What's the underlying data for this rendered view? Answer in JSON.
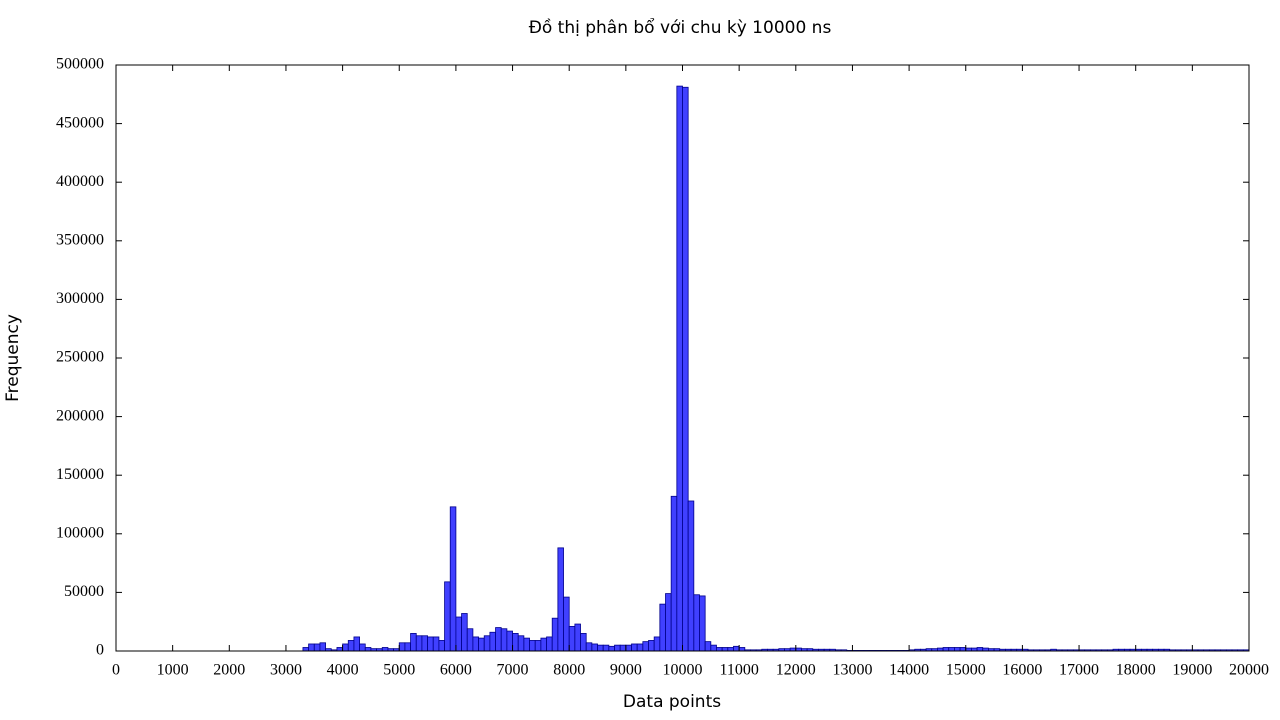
{
  "chart_data": {
    "type": "histogram",
    "title": "Đồ thị phân bổ với chu kỳ 10000 ns",
    "x_label": "Data points",
    "y_label": "Frequency",
    "color": "#4040ff",
    "bins": [
      3300,
      3400,
      3500,
      3600,
      3700,
      3800,
      3900,
      4000,
      4100,
      4200,
      4300,
      4400,
      4500,
      4600,
      4700,
      4800,
      4900,
      5000,
      5100,
      5200,
      5300,
      5400,
      5500,
      5600,
      5700,
      5800,
      5900,
      6000,
      6100,
      6200,
      6300,
      6400,
      6500,
      6600,
      6700,
      6800,
      6900,
      7000,
      7100,
      7200,
      7300,
      7400,
      7500,
      7600,
      7700,
      7800,
      7900,
      8000,
      8100,
      8200,
      8300,
      8400,
      8500,
      8600,
      8700,
      8800,
      8900,
      9000,
      9100,
      9200,
      9300,
      9400,
      9500,
      9600,
      9700,
      9800,
      9900,
      10000,
      10100,
      10200,
      10300,
      10400,
      10500,
      10600,
      10700,
      10800,
      10900,
      11000,
      11100,
      11200,
      11300,
      11400,
      11500,
      11600,
      11700,
      11800,
      11900,
      12000,
      12100,
      12200,
      12300,
      12400,
      12500,
      12600,
      12700,
      12800,
      12900,
      13000,
      13100,
      13200,
      13300,
      13400,
      13500,
      13600,
      13700,
      13800,
      13900,
      14000,
      14100,
      14200,
      14300,
      14400,
      14500,
      14600,
      14700,
      14800,
      14900,
      15000,
      15100,
      15200,
      15300,
      15400,
      15500,
      15600,
      15700,
      15800,
      15900,
      16000,
      16100,
      16200,
      16300,
      16400,
      16500,
      16600,
      16700,
      16800,
      16900,
      17000,
      17100,
      17200,
      17300,
      17400,
      17500,
      17600,
      17700,
      17800,
      17900,
      18000,
      18100,
      18200,
      18300,
      18400,
      18500,
      18600,
      18700,
      18800,
      18900,
      19000,
      19100,
      19200,
      19300,
      19400,
      19500,
      19600,
      19700,
      19800,
      19900,
      20000
    ],
    "counts": [
      3000,
      6000,
      6000,
      7000,
      2000,
      1000,
      3000,
      6000,
      9000,
      12000,
      6000,
      3000,
      2000,
      2000,
      3000,
      2000,
      2000,
      7000,
      7000,
      15000,
      13000,
      13000,
      12000,
      12000,
      9000,
      59000,
      123000,
      29000,
      32000,
      19000,
      12000,
      11000,
      13000,
      16000,
      20000,
      19000,
      17000,
      15000,
      13000,
      11000,
      9000,
      9000,
      11000,
      12000,
      28000,
      88000,
      46000,
      21000,
      23000,
      15000,
      7000,
      6000,
      5000,
      5000,
      4000,
      5000,
      5000,
      5000,
      6000,
      6000,
      8000,
      9000,
      12000,
      40000,
      49000,
      132000,
      482000,
      481000,
      128000,
      48000,
      47000,
      8000,
      5000,
      3000,
      3000,
      3000,
      4000,
      3000,
      1000,
      1000,
      1000,
      1500,
      1500,
      1500,
      2000,
      2000,
      2500,
      2500,
      2000,
      2000,
      1500,
      1500,
      1500,
      1500,
      1000,
      1000,
      500,
      500,
      500,
      500,
      500,
      500,
      500,
      500,
      500,
      500,
      500,
      1000,
      1500,
      1500,
      2000,
      2000,
      2500,
      3000,
      3000,
      3000,
      3000,
      2500,
      2500,
      3000,
      2500,
      2000,
      2000,
      1500,
      1500,
      1500,
      1500,
      1500,
      1000,
      1000,
      1000,
      1000,
      1500,
      1000,
      1000,
      1000,
      1000,
      1000,
      1000,
      1000,
      1000,
      1000,
      1000,
      1500,
      1500,
      1500,
      1500,
      1500,
      1500,
      1500,
      1500,
      1500,
      1500,
      1000,
      1000,
      1000,
      1000,
      1000,
      1000,
      1000,
      1000,
      1000,
      1000,
      1000,
      1000,
      1000,
      1000
    ],
    "xlim": [
      0,
      20000
    ],
    "xticks": [
      0,
      1000,
      2000,
      3000,
      4000,
      5000,
      6000,
      7000,
      8000,
      9000,
      10000,
      11000,
      12000,
      13000,
      14000,
      15000,
      16000,
      17000,
      18000,
      19000,
      20000
    ],
    "ylim": [
      0,
      500000
    ],
    "yticks": [
      0,
      50000,
      100000,
      150000,
      200000,
      250000,
      300000,
      350000,
      400000,
      450000,
      500000
    ]
  }
}
